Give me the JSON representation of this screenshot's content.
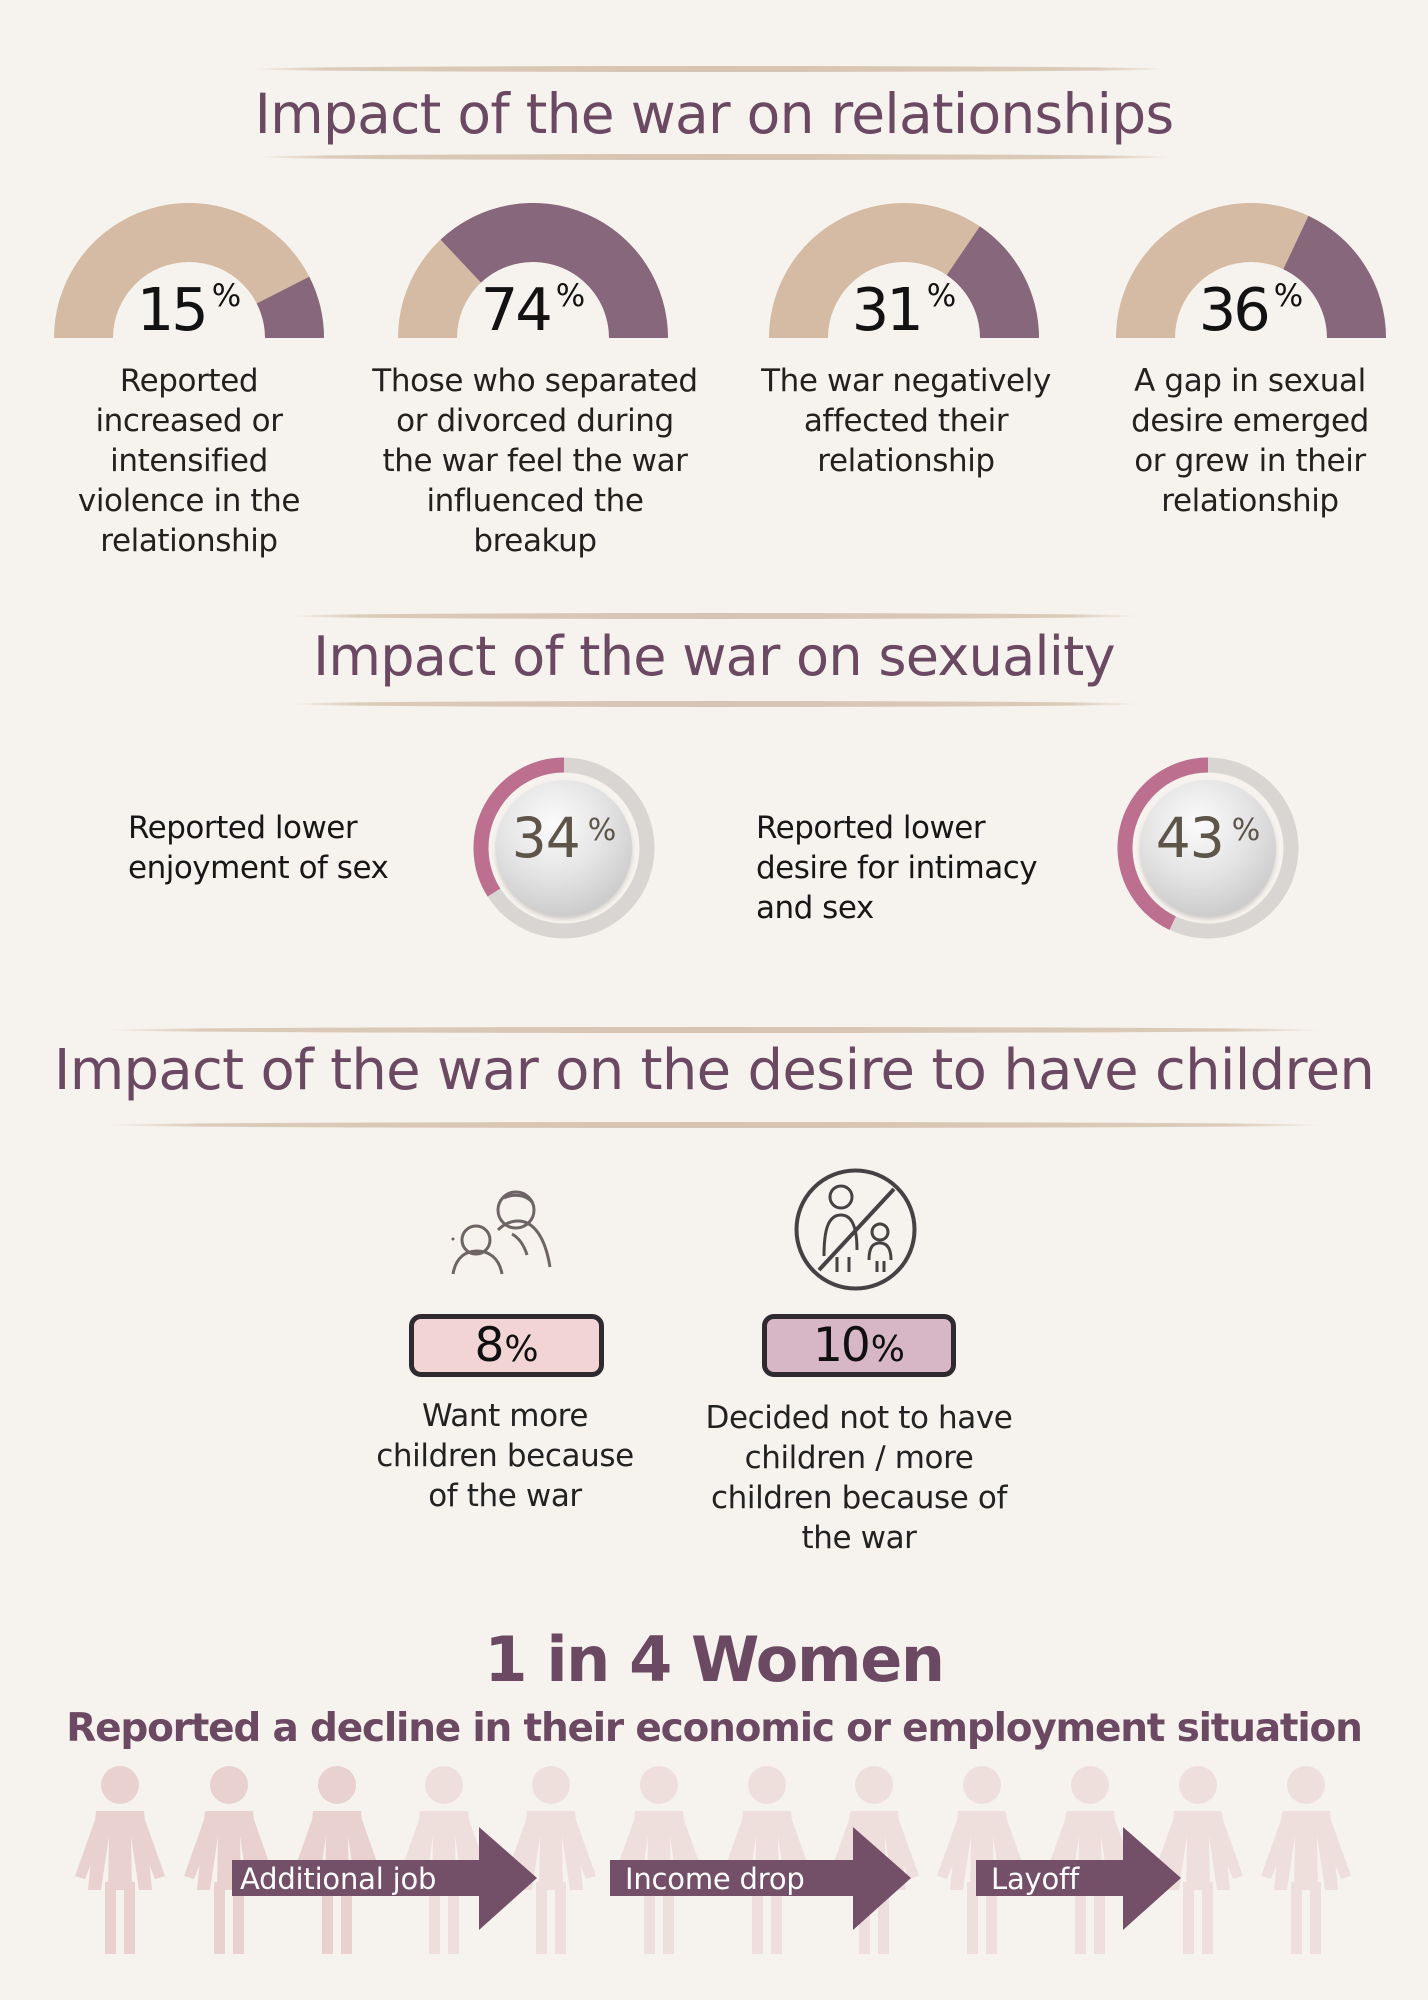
{
  "sections": {
    "relationships_title": "Impact of the war on relationships",
    "sexuality_title": "Impact of the war on sexuality",
    "children_title": "Impact of the war on the desire to have children"
  },
  "relationship_stats": [
    {
      "value_label": "15",
      "percent_label": "%",
      "value": 15,
      "caption": "Reported\nincreased or\nintensified\nviolence in the\nrelationship"
    },
    {
      "value_label": "74",
      "percent_label": "%",
      "value": 74,
      "caption": "Those who separated\nor divorced during\nthe war feel the war\ninfluenced the\nbreakup"
    },
    {
      "value_label": "31",
      "percent_label": "%",
      "value": 31,
      "caption": "The war negatively\naffected their\nrelationship"
    },
    {
      "value_label": "36",
      "percent_label": "%",
      "value": 36,
      "caption": "A gap in sexual\ndesire emerged\nor grew in their\nrelationship"
    }
  ],
  "sexuality_stats": [
    {
      "label": "Reported lower\nenjoyment of sex",
      "value_label": "34",
      "percent_label": "%",
      "value": 34
    },
    {
      "label": "Reported lower\ndesire for intimacy\nand sex",
      "value_label": "43",
      "percent_label": "%",
      "value": 43
    }
  ],
  "children_stats": [
    {
      "icon": "parent-and-child-icon",
      "value_label": "8",
      "percent_label": "%",
      "value": 8,
      "caption": "Want more\nchildren because\nof the war"
    },
    {
      "icon": "no-children-icon",
      "value_label": "10",
      "percent_label": "%",
      "value": 10,
      "caption": "Decided not to have\nchildren / more\nchildren because of\nthe war"
    }
  ],
  "women": {
    "headline": "1 in 4 Women",
    "subtitle": "Reported a decline in their economic or employment situation",
    "highlighted_count": 3,
    "total_count": 12,
    "arrows": [
      "Additional job",
      "Income drop",
      "Layoff"
    ]
  },
  "colors": {
    "background": "#f6f3ee",
    "title": "#6b4962",
    "beige": "#d5bba4",
    "plum": "#86677c",
    "rose": "#bc6f8f",
    "light_gray": "#d8d5d2",
    "pink_pill_1": "#f2d4d4",
    "pink_pill_2": "#d7b6c6",
    "figure_light": "#eedfdd",
    "figure_highlight": "#e8d1cf",
    "arrow": "#744f68"
  }
}
